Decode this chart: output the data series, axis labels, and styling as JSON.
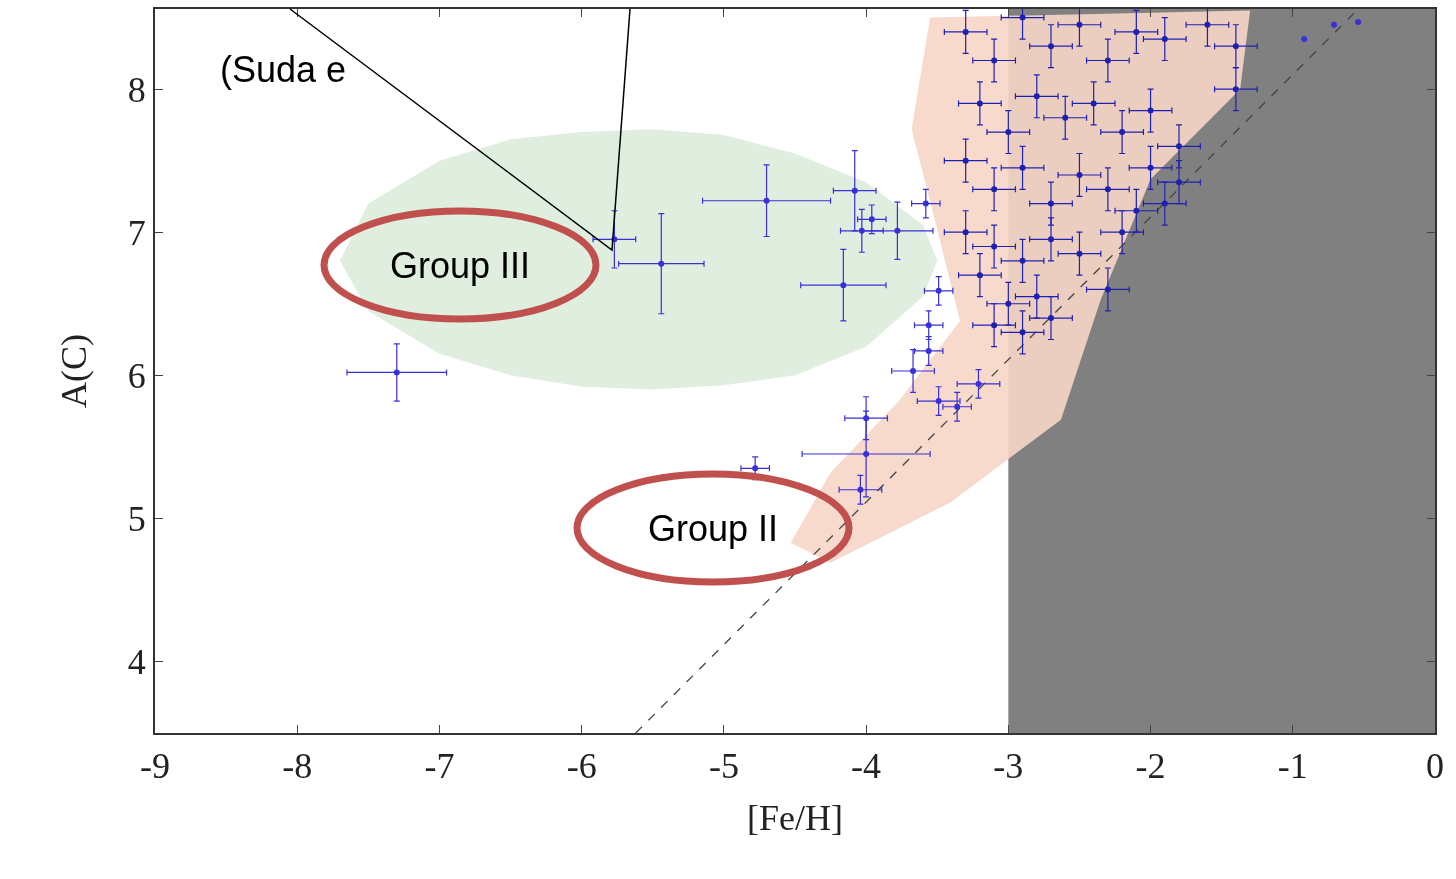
{
  "chart_data": {
    "type": "scatter",
    "xlabel": "[Fe/H]",
    "ylabel": "A(C)",
    "xlim": [
      -9,
      0
    ],
    "xticks": [
      -9,
      -8,
      -7,
      -6,
      -5,
      -4,
      -3,
      -2,
      -1,
      0
    ],
    "ylim": [
      3.5,
      8.56
    ],
    "yticks": [
      4,
      5,
      6,
      7,
      8
    ],
    "grid": false,
    "marker": "circle",
    "bands": [
      {
        "axis": "x",
        "from": -3,
        "to": 0,
        "color": "#808080"
      }
    ],
    "annotations": [
      "Group III",
      "Group II",
      "(Suda e"
    ],
    "series": [
      {
        "type": "area",
        "marker": "none",
        "color": "#dcecdc",
        "x": [
          -7.7,
          -7.5,
          -7.0,
          -6.5,
          -6.0,
          -5.5,
          -5.0,
          -4.5,
          -4.0,
          -3.6,
          -3.5,
          -3.6,
          -4.0,
          -4.5,
          -5.0,
          -5.5,
          -6.0,
          -6.5,
          -7.0,
          -7.5,
          -7.7
        ],
        "values": [
          6.8,
          7.2,
          7.5,
          7.65,
          7.7,
          7.72,
          7.68,
          7.55,
          7.35,
          7.05,
          6.8,
          6.55,
          6.2,
          6.0,
          5.93,
          5.9,
          5.92,
          6.0,
          6.15,
          6.45,
          6.8
        ]
      },
      {
        "type": "area",
        "marker": "none",
        "color": "#f6d6c6",
        "x": [
          -3.55,
          -3.68,
          -3.52,
          -3.34,
          -3.77,
          -4.25,
          -4.53,
          -4.25,
          -3.41,
          -2.63,
          -2.35,
          -2.0,
          -1.37,
          -1.3,
          -3.55
        ],
        "values": [
          8.5,
          7.72,
          7.1,
          6.38,
          5.82,
          5.32,
          4.83,
          4.69,
          5.11,
          5.69,
          6.53,
          7.37,
          8.0,
          8.55,
          8.5
        ]
      },
      {
        "type": "line",
        "color": "#444444",
        "line_style": "dashed",
        "marker": "none",
        "x": [
          -5.62,
          -0.55
        ],
        "values": [
          3.5,
          8.55
        ]
      },
      {
        "color": "#3a30d8",
        "x": [
          -7.3,
          -5.77,
          -5.44,
          -4.7,
          -4.08,
          -4.16,
          -3.78,
          -3.96,
          -4.03,
          -3.58,
          -3.49,
          -3.56,
          -3.56,
          -3.67,
          -3.49,
          -3.36,
          -3.21,
          -4.0,
          -4.0,
          -4.78,
          -4.04,
          -0.92,
          -0.71,
          -0.54
        ],
        "values": [
          6.02,
          6.95,
          6.78,
          7.22,
          7.29,
          6.63,
          7.01,
          7.09,
          7.01,
          7.2,
          6.59,
          6.35,
          6.17,
          6.03,
          5.82,
          5.78,
          5.94,
          5.7,
          5.45,
          5.35,
          5.2,
          8.35,
          8.45,
          8.47
        ],
        "xerrors": [
          0.35,
          0.15,
          0.3,
          0.45,
          0.15,
          0.3,
          0.25,
          0.1,
          0.15,
          0.1,
          0.1,
          0.1,
          0.1,
          0.15,
          0.15,
          0.1,
          0.15,
          0.15,
          0.45,
          0.1,
          0.15,
          null,
          null,
          null
        ],
        "errors": [
          0.2,
          0.2,
          0.35,
          0.25,
          0.28,
          0.25,
          0.2,
          0.1,
          0.15,
          0.1,
          0.1,
          0.1,
          0.1,
          0.15,
          0.1,
          0.1,
          0.1,
          0.15,
          0.3,
          0.08,
          0.1,
          null,
          null,
          null
        ]
      },
      {
        "color": "#2020b0",
        "x": [
          -3.3,
          -3.1,
          -2.9,
          -2.7,
          -2.5,
          -2.3,
          -2.1,
          -1.9,
          -1.6,
          -1.4,
          -1.4,
          -3.2,
          -3.0,
          -2.8,
          -2.6,
          -2.4,
          -2.2,
          -2.0,
          -1.8,
          -3.3,
          -3.1,
          -2.9,
          -2.7,
          -2.5,
          -2.3,
          -2.1,
          -1.9,
          -1.8,
          -3.3,
          -3.1,
          -2.9,
          -2.7,
          -2.5,
          -2.3,
          -3.2,
          -3.0,
          -2.8,
          -2.7,
          -3.1,
          -2.9,
          -2.2,
          -2.0
        ],
        "values": [
          8.4,
          8.2,
          8.5,
          8.3,
          8.45,
          8.2,
          8.4,
          8.35,
          8.45,
          8.3,
          8.0,
          7.9,
          7.7,
          7.95,
          7.8,
          7.9,
          7.7,
          7.85,
          7.6,
          7.5,
          7.3,
          7.45,
          7.2,
          7.4,
          7.3,
          7.15,
          7.2,
          7.35,
          7.0,
          6.9,
          6.8,
          6.95,
          6.85,
          6.6,
          6.7,
          6.5,
          6.55,
          6.4,
          6.35,
          6.3,
          7.0,
          7.45
        ],
        "xerrors": [
          0.15,
          0.15,
          0.15,
          0.15,
          0.15,
          0.15,
          0.15,
          0.15,
          0.15,
          0.15,
          0.15,
          0.15,
          0.15,
          0.15,
          0.15,
          0.15,
          0.15,
          0.15,
          0.15,
          0.15,
          0.15,
          0.15,
          0.15,
          0.15,
          0.15,
          0.15,
          0.15,
          0.15,
          0.15,
          0.15,
          0.15,
          0.15,
          0.15,
          0.15,
          0.15,
          0.15,
          0.15,
          0.15,
          0.15,
          0.15,
          0.15,
          0.15
        ],
        "errors": [
          0.15,
          0.15,
          0.15,
          0.15,
          0.15,
          0.15,
          0.15,
          0.15,
          0.15,
          0.15,
          0.15,
          0.15,
          0.15,
          0.15,
          0.15,
          0.15,
          0.15,
          0.15,
          0.15,
          0.15,
          0.15,
          0.15,
          0.15,
          0.15,
          0.15,
          0.15,
          0.15,
          0.15,
          0.15,
          0.15,
          0.15,
          0.15,
          0.15,
          0.15,
          0.15,
          0.15,
          0.15,
          0.15,
          0.15,
          0.15,
          0.15,
          0.15
        ]
      }
    ]
  }
}
